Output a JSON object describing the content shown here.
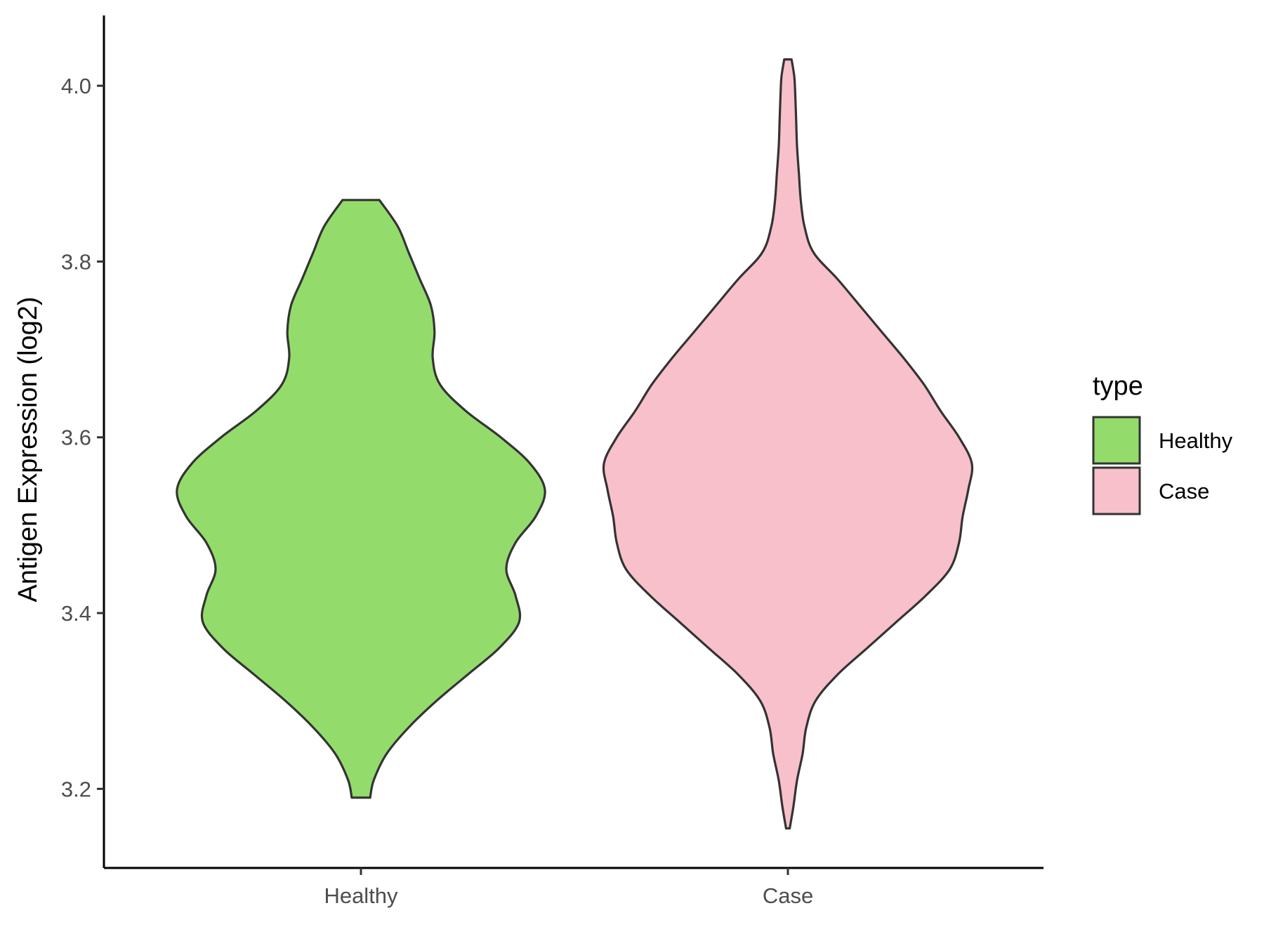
{
  "chart_data": {
    "type": "violin",
    "xlabel": "",
    "ylabel": "Antigen Expression (log2)",
    "ylim": [
      3.11,
      4.08
    ],
    "y_ticks": [
      "3.2",
      "3.4",
      "3.6",
      "3.8",
      "4.0"
    ],
    "categories": [
      "Healthy",
      "Case"
    ],
    "legend": {
      "title": "type",
      "position": "right",
      "entries": [
        {
          "label": "Healthy",
          "color": "#93dc6b"
        },
        {
          "label": "Case",
          "color": "#f8c0cb"
        }
      ]
    },
    "series": [
      {
        "name": "Healthy",
        "color": "#93dc6b",
        "min": 3.19,
        "max": 3.87,
        "density": [
          [
            3.19,
            0.05
          ],
          [
            3.21,
            0.07
          ],
          [
            3.24,
            0.14
          ],
          [
            3.27,
            0.26
          ],
          [
            3.3,
            0.41
          ],
          [
            3.33,
            0.58
          ],
          [
            3.36,
            0.75
          ],
          [
            3.39,
            0.86
          ],
          [
            3.42,
            0.84
          ],
          [
            3.45,
            0.79
          ],
          [
            3.48,
            0.84
          ],
          [
            3.51,
            0.95
          ],
          [
            3.54,
            1.0
          ],
          [
            3.57,
            0.92
          ],
          [
            3.6,
            0.76
          ],
          [
            3.63,
            0.57
          ],
          [
            3.66,
            0.43
          ],
          [
            3.69,
            0.39
          ],
          [
            3.72,
            0.4
          ],
          [
            3.75,
            0.38
          ],
          [
            3.78,
            0.32
          ],
          [
            3.81,
            0.26
          ],
          [
            3.84,
            0.2
          ],
          [
            3.87,
            0.1
          ]
        ]
      },
      {
        "name": "Case",
        "color": "#f8c0cb",
        "min": 3.155,
        "max": 4.03,
        "density": [
          [
            3.155,
            0.01
          ],
          [
            3.18,
            0.03
          ],
          [
            3.21,
            0.05
          ],
          [
            3.24,
            0.08
          ],
          [
            3.27,
            0.1
          ],
          [
            3.3,
            0.15
          ],
          [
            3.33,
            0.27
          ],
          [
            3.36,
            0.43
          ],
          [
            3.39,
            0.59
          ],
          [
            3.42,
            0.75
          ],
          [
            3.45,
            0.88
          ],
          [
            3.48,
            0.93
          ],
          [
            3.51,
            0.95
          ],
          [
            3.54,
            0.98
          ],
          [
            3.57,
            1.0
          ],
          [
            3.6,
            0.93
          ],
          [
            3.63,
            0.83
          ],
          [
            3.66,
            0.74
          ],
          [
            3.69,
            0.63
          ],
          [
            3.72,
            0.51
          ],
          [
            3.75,
            0.39
          ],
          [
            3.78,
            0.27
          ],
          [
            3.81,
            0.14
          ],
          [
            3.84,
            0.09
          ],
          [
            3.87,
            0.07
          ],
          [
            3.9,
            0.06
          ],
          [
            3.93,
            0.05
          ],
          [
            3.96,
            0.045
          ],
          [
            3.99,
            0.04
          ],
          [
            4.01,
            0.035
          ],
          [
            4.03,
            0.02
          ]
        ]
      }
    ]
  }
}
